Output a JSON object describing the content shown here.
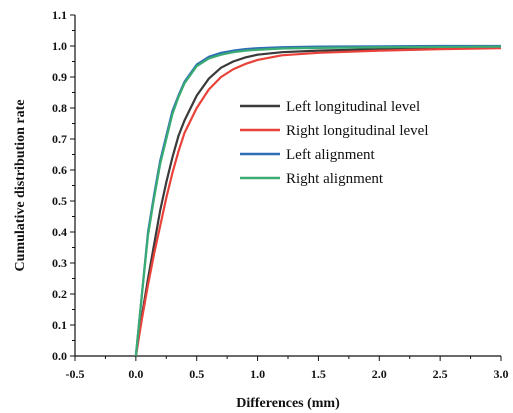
{
  "chart_data": {
    "type": "line",
    "title": "",
    "xlabel": "Differences (mm)",
    "ylabel": "Cumulative distribution rate",
    "xlim": [
      -0.5,
      3.0
    ],
    "ylim": [
      0.0,
      1.1
    ],
    "xticks": [
      "-0.5",
      "0.0",
      "0.5",
      "1.0",
      "1.5",
      "2.0",
      "2.5",
      "3.0"
    ],
    "yticks": [
      "0.0",
      "0.1",
      "0.2",
      "0.3",
      "0.4",
      "0.5",
      "0.6",
      "0.7",
      "0.8",
      "0.9",
      "1.0",
      "1.1"
    ],
    "grid": false,
    "legend_position": "center-right",
    "series": [
      {
        "name": "Left longitudinal level",
        "color": "#3a3a3a",
        "x": [
          0.0,
          0.05,
          0.1,
          0.15,
          0.2,
          0.25,
          0.3,
          0.35,
          0.4,
          0.5,
          0.6,
          0.7,
          0.8,
          0.9,
          1.0,
          1.2,
          1.5,
          2.0,
          2.5,
          3.0
        ],
        "y": [
          0.0,
          0.13,
          0.25,
          0.36,
          0.47,
          0.56,
          0.64,
          0.71,
          0.76,
          0.84,
          0.895,
          0.93,
          0.95,
          0.963,
          0.972,
          0.98,
          0.985,
          0.99,
          0.993,
          0.995
        ]
      },
      {
        "name": "Right longitudinal level",
        "color": "#e8423a",
        "x": [
          0.0,
          0.05,
          0.1,
          0.15,
          0.2,
          0.25,
          0.3,
          0.35,
          0.4,
          0.5,
          0.6,
          0.7,
          0.8,
          0.9,
          1.0,
          1.2,
          1.5,
          2.0,
          2.5,
          3.0
        ],
        "y": [
          0.0,
          0.12,
          0.23,
          0.33,
          0.42,
          0.51,
          0.59,
          0.66,
          0.72,
          0.8,
          0.86,
          0.9,
          0.925,
          0.942,
          0.955,
          0.97,
          0.978,
          0.985,
          0.99,
          0.993
        ]
      },
      {
        "name": "Left alignment",
        "color": "#2f6db5",
        "x": [
          0.0,
          0.05,
          0.1,
          0.15,
          0.2,
          0.25,
          0.3,
          0.35,
          0.4,
          0.5,
          0.6,
          0.7,
          0.8,
          0.9,
          1.0,
          1.2,
          1.5,
          2.0,
          2.5,
          3.0
        ],
        "y": [
          0.0,
          0.2,
          0.4,
          0.52,
          0.63,
          0.71,
          0.79,
          0.84,
          0.885,
          0.94,
          0.965,
          0.978,
          0.985,
          0.99,
          0.993,
          0.996,
          0.998,
          0.999,
          1.0,
          1.0
        ]
      },
      {
        "name": "Right alignment",
        "color": "#3aab73",
        "x": [
          0.0,
          0.05,
          0.1,
          0.15,
          0.2,
          0.25,
          0.3,
          0.35,
          0.4,
          0.5,
          0.6,
          0.7,
          0.8,
          0.9,
          1.0,
          1.2,
          1.5,
          2.0,
          2.5,
          3.0
        ],
        "y": [
          0.0,
          0.2,
          0.39,
          0.51,
          0.62,
          0.7,
          0.78,
          0.835,
          0.88,
          0.935,
          0.96,
          0.972,
          0.98,
          0.985,
          0.988,
          0.992,
          0.994,
          0.996,
          0.997,
          0.998
        ]
      }
    ]
  }
}
